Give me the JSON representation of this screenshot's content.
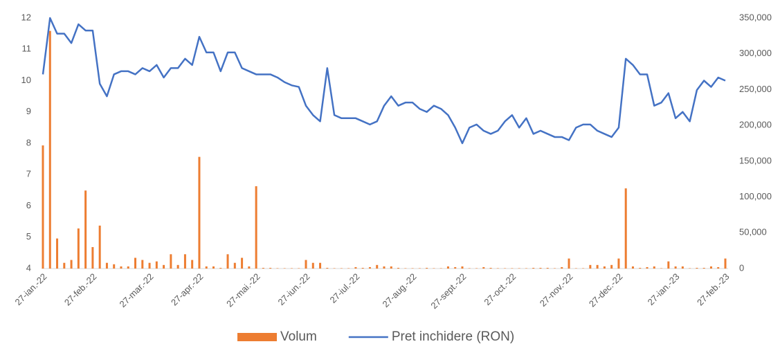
{
  "chart_data": {
    "type": "combo",
    "categories": [
      "27-ian.-22",
      null,
      null,
      null,
      null,
      null,
      null,
      "27-feb.-22",
      null,
      null,
      null,
      null,
      null,
      null,
      null,
      "27-mar.-22",
      null,
      null,
      null,
      null,
      null,
      null,
      "27-apr.-22",
      null,
      null,
      null,
      null,
      null,
      null,
      null,
      "27-mai.-22",
      null,
      null,
      null,
      null,
      null,
      null,
      "27-iun.-22",
      null,
      null,
      null,
      null,
      null,
      null,
      "27-iul.-22",
      null,
      null,
      null,
      null,
      null,
      null,
      null,
      "27-aug.-22",
      null,
      null,
      null,
      null,
      null,
      null,
      "27-sept.-22",
      null,
      null,
      null,
      null,
      null,
      null,
      "27-oct.-22",
      null,
      null,
      null,
      null,
      null,
      null,
      null,
      "27-nov.-22",
      null,
      null,
      null,
      null,
      null,
      null,
      "27-dec.-22",
      null,
      null,
      null,
      null,
      null,
      null,
      null,
      "27-ian.-23",
      null,
      null,
      null,
      null,
      null,
      null,
      "27-feb.-23"
    ],
    "series": [
      {
        "name": "Volum",
        "type": "bar",
        "axis": "y2",
        "color": "#ed7d31",
        "values": [
          172000,
          332000,
          42000,
          8000,
          12000,
          56000,
          109000,
          30000,
          60000,
          8000,
          6000,
          3000,
          3000,
          15000,
          12000,
          8000,
          10000,
          5000,
          20000,
          5000,
          20000,
          12000,
          156000,
          3000,
          3000,
          1000,
          20000,
          8000,
          15000,
          3000,
          115000,
          1000,
          1000,
          500,
          500,
          500,
          500,
          12000,
          8000,
          8000,
          1000,
          500,
          500,
          500,
          2000,
          1000,
          2000,
          5000,
          3000,
          3000,
          1000,
          500,
          500,
          500,
          1000,
          500,
          500,
          3000,
          2000,
          3000,
          500,
          500,
          2000,
          1000,
          500,
          500,
          500,
          500,
          500,
          1000,
          1000,
          1000,
          500,
          2000,
          14000,
          500,
          500,
          5000,
          5000,
          3000,
          5000,
          14000,
          112000,
          3000,
          1000,
          2000,
          3000,
          500,
          10000,
          3000,
          3000,
          500,
          1000,
          1000,
          3000,
          2000,
          14000
        ]
      },
      {
        "name": "Pret inchidere (RON)",
        "type": "line",
        "color": "#4472c4",
        "values": [
          10.2,
          12.0,
          11.5,
          11.5,
          11.2,
          11.8,
          11.6,
          11.6,
          9.9,
          9.5,
          10.2,
          10.3,
          10.3,
          10.2,
          10.4,
          10.3,
          10.5,
          10.1,
          10.4,
          10.4,
          10.7,
          10.5,
          11.4,
          10.9,
          10.9,
          10.3,
          10.9,
          10.9,
          10.4,
          10.3,
          10.2,
          10.2,
          10.2,
          10.1,
          9.95,
          9.85,
          9.8,
          9.2,
          8.9,
          8.7,
          10.4,
          8.9,
          8.8,
          8.8,
          8.8,
          8.7,
          8.6,
          8.7,
          9.2,
          9.5,
          9.2,
          9.3,
          9.3,
          9.1,
          9.0,
          9.2,
          9.1,
          8.9,
          8.5,
          8.0,
          8.5,
          8.6,
          8.4,
          8.3,
          8.4,
          8.7,
          8.9,
          8.5,
          8.8,
          8.3,
          8.4,
          8.3,
          8.2,
          8.2,
          8.1,
          8.5,
          8.6,
          8.6,
          8.4,
          8.3,
          8.2,
          8.5,
          10.7,
          10.5,
          10.2,
          10.2,
          9.2,
          9.3,
          9.6,
          8.8,
          9.0,
          8.7,
          9.7,
          10.0,
          9.8,
          10.1,
          10.0
        ]
      }
    ],
    "ylim": [
      4,
      12
    ],
    "yticks": [
      4,
      5,
      6,
      7,
      8,
      9,
      10,
      11,
      12
    ],
    "y2lim": [
      0,
      350000
    ],
    "y2ticks": [
      0,
      {
        "value": 50000,
        "label": "50,000"
      },
      {
        "value": 100000,
        "label": "100,000"
      },
      {
        "value": 150000,
        "label": "150,000"
      },
      {
        "value": 200000,
        "label": "200,000"
      },
      {
        "value": 250000,
        "label": "250,000"
      },
      {
        "value": 300000,
        "label": "300,000"
      },
      {
        "value": 350000,
        "label": "350,000"
      }
    ],
    "grid": false,
    "legend": "bottom"
  }
}
